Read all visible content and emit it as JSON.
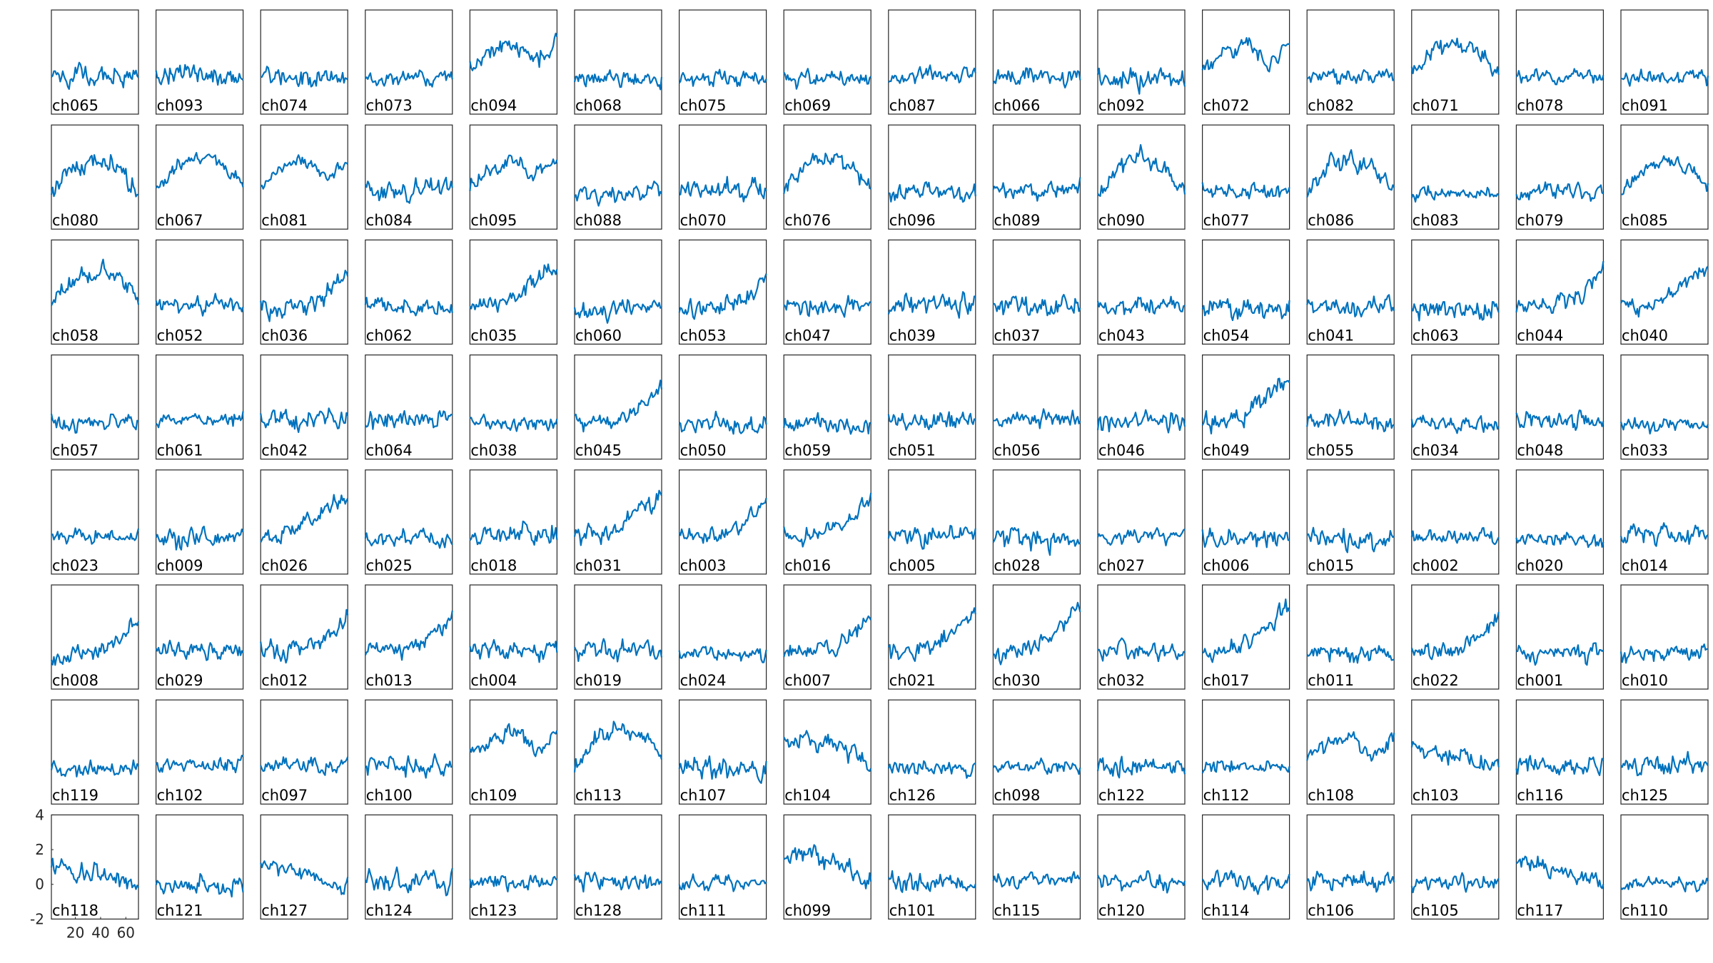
{
  "chart_data": {
    "type": "line",
    "layout": "small-multiples grid, 8 rows x 16 columns",
    "series_color": "#0072BD",
    "xlim": [
      1,
      70
    ],
    "ylim": [
      -2,
      4
    ],
    "xticks": [
      20,
      40,
      60
    ],
    "yticks": [
      -2,
      0,
      2,
      4
    ],
    "tick_axes_panel": "ch118",
    "samples_per_panel": 70,
    "panels": [
      [
        "ch065",
        "ch093",
        "ch074",
        "ch073",
        "ch094",
        "ch068",
        "ch075",
        "ch069",
        "ch087",
        "ch066",
        "ch092",
        "ch072",
        "ch082",
        "ch071",
        "ch078",
        "ch091"
      ],
      [
        "ch080",
        "ch067",
        "ch081",
        "ch084",
        "ch095",
        "ch088",
        "ch070",
        "ch076",
        "ch096",
        "ch089",
        "ch090",
        "ch077",
        "ch086",
        "ch083",
        "ch079",
        "ch085"
      ],
      [
        "ch058",
        "ch052",
        "ch036",
        "ch062",
        "ch035",
        "ch060",
        "ch053",
        "ch047",
        "ch039",
        "ch037",
        "ch043",
        "ch054",
        "ch041",
        "ch063",
        "ch044",
        "ch040"
      ],
      [
        "ch057",
        "ch061",
        "ch042",
        "ch064",
        "ch038",
        "ch045",
        "ch050",
        "ch059",
        "ch051",
        "ch056",
        "ch046",
        "ch049",
        "ch055",
        "ch034",
        "ch048",
        "ch033"
      ],
      [
        "ch023",
        "ch009",
        "ch026",
        "ch025",
        "ch018",
        "ch031",
        "ch003",
        "ch016",
        "ch005",
        "ch028",
        "ch027",
        "ch006",
        "ch015",
        "ch002",
        "ch020",
        "ch014"
      ],
      [
        "ch008",
        "ch029",
        "ch012",
        "ch013",
        "ch004",
        "ch019",
        "ch024",
        "ch007",
        "ch021",
        "ch030",
        "ch032",
        "ch017",
        "ch011",
        "ch022",
        "ch001",
        "ch010"
      ],
      [
        "ch119",
        "ch102",
        "ch097",
        "ch100",
        "ch109",
        "ch113",
        "ch107",
        "ch104",
        "ch126",
        "ch098",
        "ch122",
        "ch112",
        "ch108",
        "ch103",
        "ch116",
        "ch125"
      ],
      [
        "ch118",
        "ch121",
        "ch127",
        "ch124",
        "ch123",
        "ch128",
        "ch111",
        "ch099",
        "ch101",
        "ch115",
        "ch120",
        "ch114",
        "ch106",
        "ch105",
        "ch117",
        "ch110"
      ]
    ],
    "trend_profiles": {
      "flat": [
        0,
        0,
        0,
        0,
        0
      ],
      "rise_end": [
        0,
        0,
        0.2,
        0.8,
        2.0
      ],
      "rise_late": [
        0,
        0.1,
        0.5,
        1.5,
        2.5
      ],
      "hump": [
        0,
        1.5,
        2.0,
        1.5,
        0.3
      ],
      "hump_end": [
        0.5,
        1.5,
        2.0,
        0.8,
        2.0
      ],
      "fall": [
        1.0,
        0.8,
        0.6,
        0.2,
        0.0
      ],
      "drop_end": [
        1.2,
        1.5,
        1.2,
        0.8,
        0.0
      ]
    },
    "panel_trend": {
      "ch094": "hump_end",
      "ch072": "hump_end",
      "ch071": "hump",
      "ch081": "hump_end",
      "ch067": "hump",
      "ch095": "hump_end",
      "ch076": "hump",
      "ch090": "hump",
      "ch085": "hump",
      "ch086": "hump",
      "ch035": "rise_late",
      "ch053": "rise_end",
      "ch036": "rise_end",
      "ch044": "rise_end",
      "ch040": "rise_late",
      "ch058": "hump",
      "ch049": "rise_late",
      "ch045": "rise_end",
      "ch026": "rise_late",
      "ch031": "rise_late",
      "ch003": "rise_end",
      "ch016": "rise_end",
      "ch008": "rise_end",
      "ch012": "rise_end",
      "ch013": "rise_end",
      "ch007": "rise_end",
      "ch021": "rise_late",
      "ch030": "rise_late",
      "ch017": "rise_late",
      "ch022": "rise_end",
      "ch104": "drop_end",
      "ch113": "hump",
      "ch109": "hump_end",
      "ch108": "hump_end",
      "ch103": "fall",
      "ch099": "drop_end",
      "ch118": "fall",
      "ch127": "fall",
      "ch117": "fall",
      "ch080": "hump"
    }
  }
}
